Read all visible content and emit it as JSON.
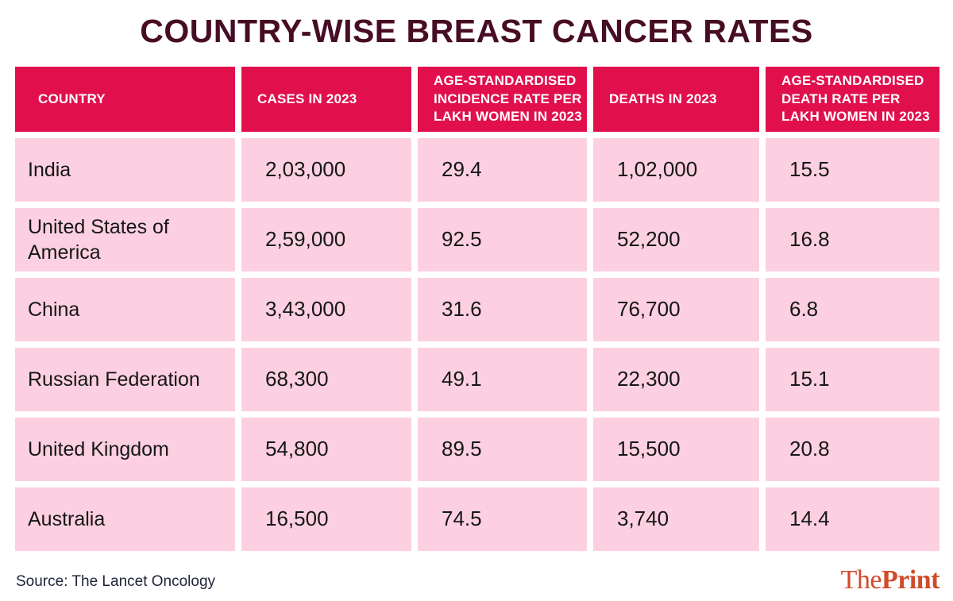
{
  "title": "COUNTRY-WISE BREAST CANCER RATES",
  "headers_display": [
    "COUNTRY",
    "CASES IN 2023",
    "AGE-STANDARDISED\nINCIDENCE RATE PER\nLAKH WOMEN IN 2023",
    "DEATHS IN 2023",
    "AGE-STANDARDISED\nDEATH RATE PER\nLAKH WOMEN IN 2023"
  ],
  "chart_data": {
    "type": "table",
    "title": "COUNTRY-WISE BREAST CANCER RATES",
    "columns": [
      "COUNTRY",
      "CASES IN 2023",
      "AGE-STANDARDISED INCIDENCE RATE PER LAKH WOMEN IN 2023",
      "DEATHS IN 2023",
      "AGE-STANDARDISED DEATH RATE PER LAKH WOMEN IN 2023"
    ],
    "rows": [
      [
        "India",
        "2,03,000",
        "29.4",
        "1,02,000",
        "15.5"
      ],
      [
        "United States of America",
        "2,59,000",
        "92.5",
        "52,200",
        "16.8"
      ],
      [
        "China",
        "3,43,000",
        "31.6",
        "76,700",
        "6.8"
      ],
      [
        "Russian Federation",
        "68,300",
        "49.1",
        "22,300",
        "15.1"
      ],
      [
        "United Kingdom",
        "54,800",
        "89.5",
        "15,500",
        "20.8"
      ],
      [
        "Australia",
        "16,500",
        "74.5",
        "3,740",
        "14.4"
      ]
    ],
    "source": "The Lancet Oncology"
  },
  "footer": {
    "source": "Source: The Lancet Oncology",
    "brand_the": "The",
    "brand_print": "Print"
  },
  "colors": {
    "header_bg": "#E1104C",
    "row_bg": "#FCD0E1",
    "title_text": "#470D24",
    "source_text": "#212539",
    "brand": "#D14B2B"
  }
}
